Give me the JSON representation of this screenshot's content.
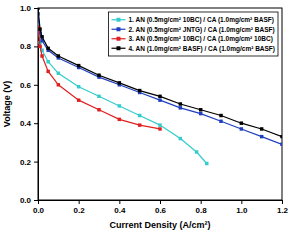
{
  "chart_data": {
    "type": "line",
    "x_label": "Current Density (A/cm²)",
    "y_label": "Voltage (V)",
    "xlim": [
      0,
      1.2
    ],
    "ylim": [
      0,
      1.0
    ],
    "xticks": [
      {
        "value": 0,
        "label": "0.0"
      },
      0.2,
      0.4,
      0.6,
      0.8,
      {
        "value": 1.0,
        "label": "1.0"
      },
      1.2
    ],
    "yticks": [
      {
        "value": 0,
        "label": "0.0"
      },
      0.2,
      0.4,
      0.6,
      0.8,
      {
        "value": 1.0,
        "label": "1.0"
      }
    ],
    "grid": false,
    "legend": "upper right",
    "marker": "square",
    "line_style": "solid",
    "series": [
      {
        "name": "1. AN (0.5mg/cm² 10BC) / CA (1.0mg/cm² BASF)",
        "color": "#33cccc",
        "x": [
          0,
          0.01,
          0.02,
          0.05,
          0.1,
          0.2,
          0.3,
          0.4,
          0.5,
          0.6,
          0.7,
          0.78,
          0.83
        ],
        "values": [
          0.92,
          0.82,
          0.78,
          0.72,
          0.66,
          0.59,
          0.54,
          0.49,
          0.44,
          0.39,
          0.32,
          0.25,
          0.19
        ]
      },
      {
        "name": "2. AN (0.5mg/cm² JNTG) / CA (1.0mg/cm² BASF)",
        "color": "#1f3fbf",
        "x": [
          0,
          0.01,
          0.02,
          0.05,
          0.1,
          0.2,
          0.3,
          0.4,
          0.5,
          0.6,
          0.7,
          0.8,
          0.9,
          1.0,
          1.1,
          1.2
        ],
        "values": [
          0.97,
          0.87,
          0.83,
          0.78,
          0.74,
          0.69,
          0.64,
          0.6,
          0.56,
          0.52,
          0.48,
          0.45,
          0.41,
          0.37,
          0.33,
          0.29
        ]
      },
      {
        "name": "3. AN (0.5mg/cm² 10BC) / CA (1.0mg/cm² 10BC)",
        "color": "#e02020",
        "x": [
          0,
          0.01,
          0.02,
          0.05,
          0.1,
          0.2,
          0.3,
          0.4,
          0.5,
          0.6
        ],
        "values": [
          0.9,
          0.8,
          0.75,
          0.67,
          0.6,
          0.52,
          0.47,
          0.42,
          0.39,
          0.37
        ]
      },
      {
        "name": "4. AN (1.0mg/cm² BASF) / CA (1.0mg/cm² BASF)",
        "color": "#000000",
        "x": [
          0,
          0.01,
          0.02,
          0.05,
          0.1,
          0.2,
          0.3,
          0.4,
          0.5,
          0.6,
          0.7,
          0.8,
          0.9,
          1.0,
          1.1,
          1.2
        ],
        "values": [
          1.0,
          0.89,
          0.85,
          0.79,
          0.75,
          0.7,
          0.65,
          0.61,
          0.57,
          0.54,
          0.5,
          0.47,
          0.44,
          0.4,
          0.37,
          0.33
        ]
      }
    ]
  }
}
